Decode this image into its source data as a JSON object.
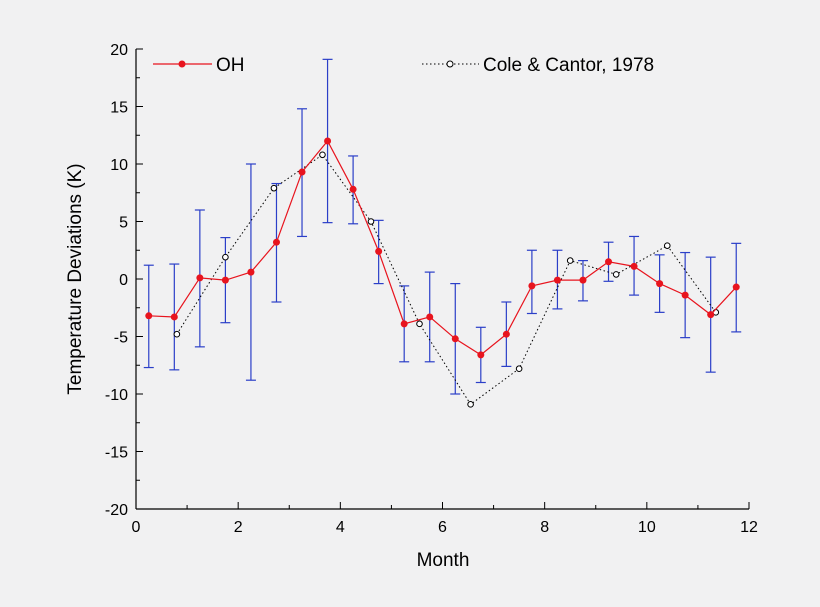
{
  "chart_data": {
    "type": "line",
    "title": "",
    "xlabel": "Month",
    "ylabel": "Temperature Deviations (K)",
    "xlim": [
      0,
      12
    ],
    "ylim": [
      -20,
      20
    ],
    "xticks": [
      0,
      2,
      4,
      6,
      8,
      10,
      12
    ],
    "yticks": [
      -20,
      -15,
      -10,
      -5,
      0,
      5,
      10,
      15,
      20
    ],
    "grid": false,
    "legend": "top",
    "series": [
      {
        "name": "OH",
        "color": "#e8141e",
        "marker": "filled-circle",
        "line": "solid",
        "x": [
          0.25,
          0.75,
          1.25,
          1.75,
          2.25,
          2.75,
          3.25,
          3.75,
          4.25,
          4.75,
          5.25,
          5.75,
          6.25,
          6.75,
          7.25,
          7.75,
          8.25,
          8.75,
          9.25,
          9.75,
          10.25,
          10.75,
          11.25,
          11.75
        ],
        "y": [
          -3.2,
          -3.3,
          0.1,
          -0.1,
          0.6,
          3.2,
          9.3,
          12.0,
          7.8,
          2.4,
          -3.9,
          -3.3,
          -5.2,
          -6.6,
          -4.8,
          -0.6,
          -0.1,
          -0.1,
          1.5,
          1.1,
          -0.4,
          -1.4,
          -3.1,
          -0.7
        ],
        "err_low": [
          -7.7,
          -7.9,
          -5.9,
          -3.8,
          -8.8,
          -2.0,
          3.7,
          4.9,
          4.8,
          -0.4,
          -7.2,
          -7.2,
          -10.0,
          -9.0,
          -7.6,
          -3.0,
          -2.6,
          -1.9,
          -0.2,
          -1.4,
          -2.9,
          -5.1,
          -8.1,
          -4.6
        ],
        "err_high": [
          1.2,
          1.3,
          6.0,
          3.6,
          10.0,
          8.3,
          14.8,
          19.1,
          10.7,
          5.1,
          -0.6,
          0.6,
          -0.4,
          -4.2,
          -2.0,
          2.5,
          2.5,
          1.6,
          3.2,
          3.7,
          2.1,
          2.3,
          1.9,
          3.1
        ],
        "error_bar_color": "#2b3fc8"
      },
      {
        "name": "Cole & Cantor, 1978",
        "color": "#000000",
        "marker": "open-circle",
        "line": "dotted",
        "x": [
          0.8,
          1.75,
          2.7,
          3.65,
          4.6,
          5.55,
          6.55,
          7.5,
          8.5,
          9.4,
          10.4,
          11.35
        ],
        "y": [
          -4.8,
          1.9,
          7.9,
          10.8,
          5.0,
          -3.9,
          -10.9,
          -7.8,
          1.6,
          0.4,
          2.9,
          -2.9
        ]
      }
    ]
  }
}
